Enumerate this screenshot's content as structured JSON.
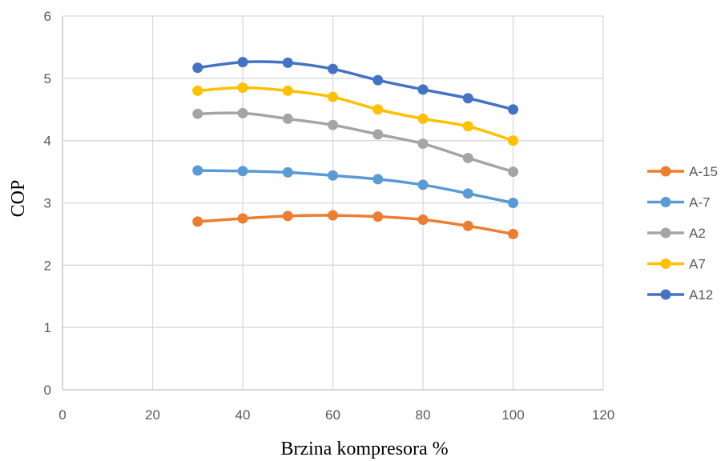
{
  "chart_data": {
    "type": "line",
    "title": "",
    "xlabel": "Brzina kompresora %",
    "ylabel": "COP",
    "xlim": [
      0,
      120
    ],
    "ylim": [
      0,
      6
    ],
    "xticks": [
      "0",
      "20",
      "40",
      "60",
      "80",
      "100",
      "120"
    ],
    "yticks": [
      "0",
      "1",
      "2",
      "3",
      "4",
      "5",
      "6"
    ],
    "grid": true,
    "legend_position": "right",
    "x": [
      30,
      40,
      50,
      60,
      70,
      80,
      90,
      100
    ],
    "series": [
      {
        "name": "A-15",
        "color": "#ED7D31",
        "values": [
          2.7,
          2.75,
          2.79,
          2.8,
          2.78,
          2.73,
          2.63,
          2.5
        ]
      },
      {
        "name": "A-7",
        "color": "#5B9BD5",
        "values": [
          3.52,
          3.51,
          3.49,
          3.44,
          3.38,
          3.29,
          3.15,
          3.0
        ]
      },
      {
        "name": "A2",
        "color": "#A5A5A5",
        "values": [
          4.43,
          4.44,
          4.35,
          4.25,
          4.1,
          3.95,
          3.72,
          3.5
        ]
      },
      {
        "name": "A7",
        "color": "#FFC000",
        "values": [
          4.8,
          4.85,
          4.8,
          4.7,
          4.5,
          4.35,
          4.23,
          4.0
        ]
      },
      {
        "name": "A12",
        "color": "#4472C4",
        "values": [
          5.17,
          5.26,
          5.25,
          5.15,
          4.97,
          4.82,
          4.68,
          4.5
        ]
      }
    ]
  }
}
